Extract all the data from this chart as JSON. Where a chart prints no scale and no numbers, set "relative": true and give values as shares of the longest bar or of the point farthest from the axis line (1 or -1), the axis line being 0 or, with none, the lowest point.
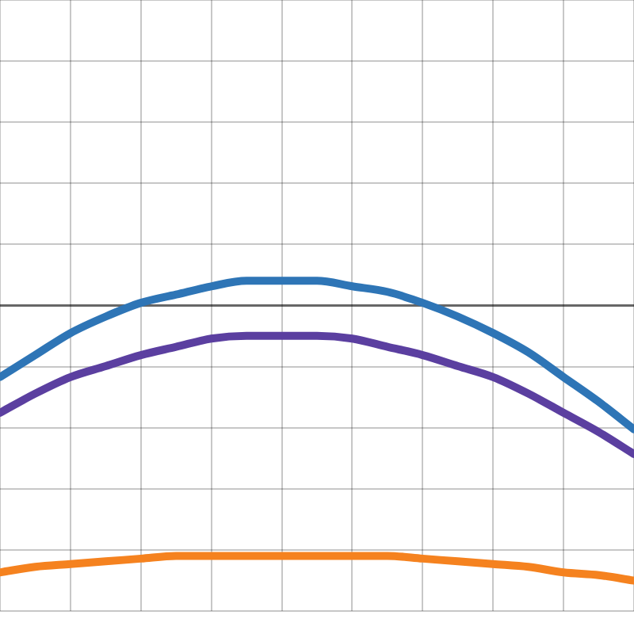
{
  "chart_data": {
    "type": "line",
    "relative": true,
    "grid": true,
    "marker": "none",
    "line_style": "solid",
    "categories": [
      null,
      null,
      null,
      null,
      null,
      null,
      null,
      null,
      null,
      null,
      null,
      null,
      null,
      null,
      null,
      null,
      null,
      null,
      null
    ],
    "series": [
      {
        "color": "#2e75b6",
        "values": [
          -0.26,
          -0.18,
          -0.1,
          -0.04,
          0.01,
          0.04,
          0.07,
          0.09,
          0.09,
          0.09,
          0.07,
          0.05,
          0.01,
          -0.04,
          -0.1,
          -0.17,
          -0.26,
          -0.35,
          -0.45
        ]
      },
      {
        "color": "#5b3fa0",
        "values": [
          -0.39,
          -0.32,
          -0.26,
          -0.22,
          -0.18,
          -0.15,
          -0.12,
          -0.11,
          -0.11,
          -0.11,
          -0.12,
          -0.15,
          -0.18,
          -0.22,
          -0.26,
          -0.32,
          -0.39,
          -0.46,
          -0.54
        ]
      },
      {
        "color": "#f5821f",
        "values": [
          -0.97,
          -0.95,
          -0.94,
          -0.93,
          -0.92,
          -0.91,
          -0.91,
          -0.91,
          -0.91,
          -0.91,
          -0.91,
          -0.91,
          -0.92,
          -0.93,
          -0.94,
          -0.95,
          -0.97,
          -0.98,
          -1
        ]
      }
    ]
  }
}
